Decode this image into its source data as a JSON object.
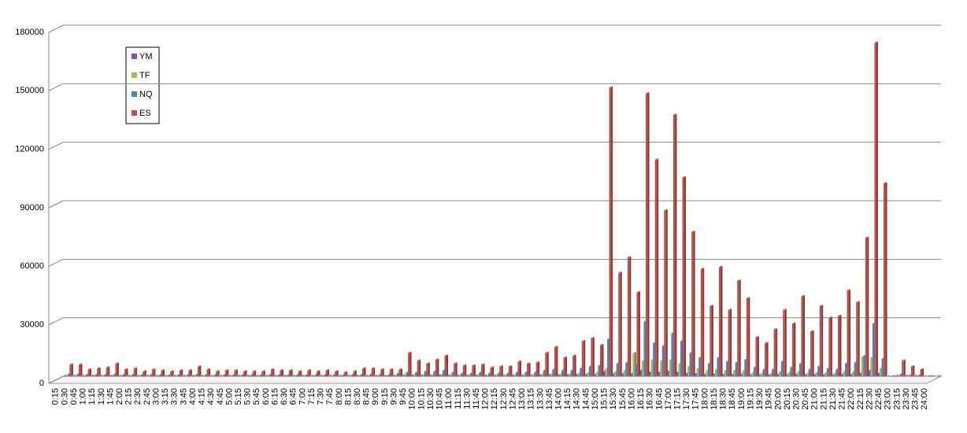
{
  "chart_data": {
    "type": "bar",
    "categories": [
      "0:15",
      "0:30",
      "0:45",
      "1:00",
      "1:15",
      "1:30",
      "1:45",
      "2:00",
      "2:15",
      "2:30",
      "2:45",
      "3:00",
      "3:15",
      "3:30",
      "3:45",
      "4:00",
      "4:15",
      "4:30",
      "4:45",
      "5:00",
      "5:15",
      "5:30",
      "5:45",
      "6:00",
      "6:15",
      "6:30",
      "6:45",
      "7:00",
      "7:15",
      "7:30",
      "7:45",
      "8:00",
      "8:15",
      "8:30",
      "8:45",
      "9:00",
      "9:15",
      "9:30",
      "9:45",
      "10:00",
      "10:15",
      "10:30",
      "10:45",
      "11:00",
      "11:15",
      "11:30",
      "11:45",
      "12:00",
      "12:15",
      "12:30",
      "12:45",
      "13:00",
      "13:15",
      "13:30",
      "13:45",
      "14:00",
      "14:15",
      "14:30",
      "14:45",
      "15:00",
      "15:15",
      "15:30",
      "15:45",
      "16:00",
      "16:15",
      "16:30",
      "16:45",
      "17:00",
      "17:15",
      "17:30",
      "17:45",
      "18:00",
      "18:15",
      "18:30",
      "18:45",
      "19:00",
      "19:15",
      "19:30",
      "19:45",
      "20:00",
      "20:15",
      "20:30",
      "20:45",
      "21:00",
      "21:15",
      "21:30",
      "21:45",
      "22:00",
      "22:15",
      "22:30",
      "22:45",
      "23:00",
      "23:15",
      "23:30",
      "23:45",
      "24:00"
    ],
    "series": [
      {
        "name": "YM",
        "color": "#7e57a8",
        "values": [
          200,
          200,
          200,
          200,
          200,
          200,
          200,
          200,
          200,
          200,
          200,
          200,
          200,
          200,
          200,
          200,
          200,
          200,
          200,
          200,
          200,
          200,
          200,
          200,
          200,
          200,
          200,
          200,
          200,
          200,
          200,
          200,
          200,
          200,
          200,
          200,
          300,
          500,
          500,
          500,
          500,
          600,
          500,
          400,
          400,
          400,
          400,
          400,
          400,
          500,
          500,
          500,
          600,
          700,
          600,
          600,
          800,
          900,
          900,
          2500,
          1200,
          1300,
          1200,
          3000,
          2000,
          2000,
          2500,
          2000,
          1500,
          1200,
          900,
          1000,
          900,
          900,
          1000,
          700,
          600,
          600,
          900,
          700,
          900,
          600,
          800,
          700,
          700,
          900,
          900,
          1500,
          3000,
          1500,
          0,
          300,
          200,
          200,
          0,
          0
        ]
      },
      {
        "name": "TF",
        "color": "#9bbb59",
        "values": [
          300,
          300,
          300,
          300,
          300,
          300,
          300,
          300,
          300,
          300,
          300,
          300,
          300,
          300,
          300,
          300,
          300,
          300,
          300,
          300,
          300,
          300,
          300,
          300,
          300,
          300,
          300,
          300,
          300,
          300,
          300,
          300,
          300,
          300,
          300,
          300,
          500,
          800,
          800,
          900,
          900,
          1000,
          800,
          700,
          700,
          700,
          600,
          600,
          600,
          800,
          800,
          800,
          1000,
          1200,
          1100,
          1100,
          1500,
          1800,
          2000,
          4000,
          2500,
          3000,
          12000,
          8000,
          8500,
          8000,
          8500,
          6500,
          5000,
          4000,
          3000,
          3500,
          3000,
          3000,
          3000,
          1800,
          1500,
          1500,
          2500,
          2000,
          2500,
          1500,
          2000,
          1800,
          1800,
          2500,
          2500,
          10000,
          9500,
          4000,
          0,
          400,
          300,
          300,
          0,
          0
        ]
      },
      {
        "name": "NQ",
        "color": "#4f81bd",
        "values": [
          1000,
          1000,
          800,
          800,
          800,
          900,
          800,
          800,
          700,
          700,
          700,
          600,
          600,
          600,
          800,
          700,
          600,
          600,
          600,
          600,
          600,
          600,
          700,
          600,
          600,
          600,
          600,
          600,
          600,
          600,
          500,
          600,
          800,
          800,
          700,
          700,
          1500,
          2000,
          2000,
          2500,
          2500,
          3000,
          2000,
          1500,
          1500,
          2000,
          1500,
          1500,
          1500,
          2000,
          2000,
          2000,
          3000,
          3500,
          3000,
          3000,
          4000,
          5000,
          5500,
          19000,
          6500,
          7000,
          6000,
          28000,
          17000,
          15500,
          22000,
          18000,
          12000,
          9500,
          6500,
          9500,
          7500,
          7000,
          8500,
          4500,
          3500,
          3500,
          7500,
          4500,
          6500,
          3500,
          5000,
          4000,
          3500,
          6500,
          7000,
          10500,
          27000,
          9000,
          0,
          1000,
          500,
          500,
          0,
          0
        ]
      },
      {
        "name": "ES",
        "color": "#c0504d",
        "values": [
          6000,
          6000,
          3500,
          4000,
          4500,
          6500,
          3500,
          4000,
          2500,
          3500,
          3000,
          2500,
          3000,
          3000,
          5000,
          3500,
          2500,
          3000,
          3000,
          2500,
          2500,
          2500,
          3500,
          3000,
          3000,
          2500,
          3000,
          2500,
          3000,
          2500,
          2000,
          2500,
          4000,
          4000,
          3500,
          3500,
          3500,
          12000,
          8000,
          6500,
          8500,
          10500,
          6500,
          5500,
          5500,
          6000,
          4500,
          5000,
          5000,
          7500,
          6500,
          7000,
          12000,
          15000,
          9500,
          10500,
          18000,
          19500,
          16000,
          148000,
          53000,
          61000,
          43000,
          145000,
          111000,
          85000,
          134000,
          102000,
          74000,
          55000,
          36000,
          56000,
          34000,
          49000,
          40000,
          20000,
          17000,
          24000,
          34000,
          27000,
          41000,
          23000,
          36000,
          30000,
          31000,
          44000,
          38000,
          71000,
          171000,
          99000,
          0,
          8000,
          5000,
          3500,
          0,
          0
        ]
      }
    ],
    "ylim": [
      0,
      180000
    ],
    "yticks": [
      0,
      30000,
      60000,
      90000,
      120000,
      150000,
      180000
    ],
    "grid": true
  }
}
